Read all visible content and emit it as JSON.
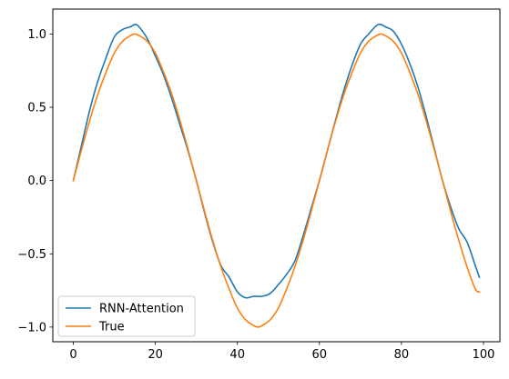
{
  "chart_data": {
    "type": "line",
    "title": "",
    "xlabel": "",
    "ylabel": "",
    "xlim": [
      -5,
      104
    ],
    "ylim": [
      -1.1,
      1.17
    ],
    "x_ticks": [
      0,
      20,
      40,
      60,
      80,
      100
    ],
    "x_tick_labels": [
      "0",
      "20",
      "40",
      "60",
      "80",
      "100"
    ],
    "y_ticks": [
      1.0,
      0.5,
      0.0,
      -0.5,
      -1.0
    ],
    "y_tick_labels": [
      "1.0",
      "0.5",
      "0.0",
      "−0.5",
      "−1.0"
    ],
    "grid": false,
    "legend": {
      "position": "lower-left",
      "entries": [
        "RNN-Attention",
        "True"
      ]
    },
    "series": [
      {
        "name": "RNN-Attention",
        "color": "#1f77b4",
        "x": [
          0,
          2,
          4,
          6,
          8,
          10,
          12,
          14,
          15,
          16,
          18,
          20,
          22,
          24,
          26,
          28,
          30,
          32,
          34,
          36,
          38,
          40,
          42,
          44,
          46,
          48,
          50,
          52,
          54,
          56,
          58,
          60,
          62,
          64,
          66,
          68,
          70,
          72,
          74,
          75,
          76,
          78,
          80,
          82,
          84,
          86,
          88,
          90,
          92,
          94,
          96,
          98,
          99
        ],
        "y": [
          0.0,
          0.24,
          0.48,
          0.68,
          0.84,
          0.98,
          1.03,
          1.05,
          1.065,
          1.05,
          0.97,
          0.85,
          0.72,
          0.56,
          0.38,
          0.2,
          0.0,
          -0.22,
          -0.42,
          -0.58,
          -0.66,
          -0.76,
          -0.8,
          -0.79,
          -0.79,
          -0.77,
          -0.71,
          -0.64,
          -0.55,
          -0.38,
          -0.19,
          0.0,
          0.21,
          0.42,
          0.62,
          0.79,
          0.93,
          1.0,
          1.06,
          1.065,
          1.05,
          1.02,
          0.93,
          0.8,
          0.64,
          0.44,
          0.22,
          0.0,
          -0.18,
          -0.33,
          -0.42,
          -0.58,
          -0.66
        ]
      },
      {
        "name": "True",
        "color": "#ff7f0e",
        "x": [
          0,
          2,
          4,
          6,
          8,
          10,
          12,
          14,
          15,
          16,
          18,
          20,
          22,
          24,
          26,
          28,
          30,
          32,
          34,
          36,
          38,
          40,
          42,
          44,
          45,
          46,
          48,
          50,
          52,
          54,
          56,
          58,
          60,
          62,
          64,
          66,
          68,
          70,
          72,
          74,
          75,
          76,
          78,
          80,
          82,
          84,
          86,
          88,
          90,
          92,
          94,
          96,
          98,
          99
        ],
        "y": [
          0.0,
          0.21,
          0.41,
          0.59,
          0.74,
          0.87,
          0.95,
          0.99,
          1.0,
          0.99,
          0.95,
          0.87,
          0.74,
          0.59,
          0.41,
          0.21,
          0.0,
          -0.21,
          -0.41,
          -0.59,
          -0.74,
          -0.87,
          -0.95,
          -0.99,
          -1.0,
          -0.99,
          -0.95,
          -0.87,
          -0.74,
          -0.59,
          -0.41,
          -0.21,
          0.0,
          0.21,
          0.41,
          0.59,
          0.74,
          0.87,
          0.95,
          0.99,
          1.0,
          0.99,
          0.95,
          0.87,
          0.74,
          0.59,
          0.41,
          0.21,
          0.0,
          -0.21,
          -0.41,
          -0.59,
          -0.74,
          -0.76
        ]
      }
    ]
  }
}
